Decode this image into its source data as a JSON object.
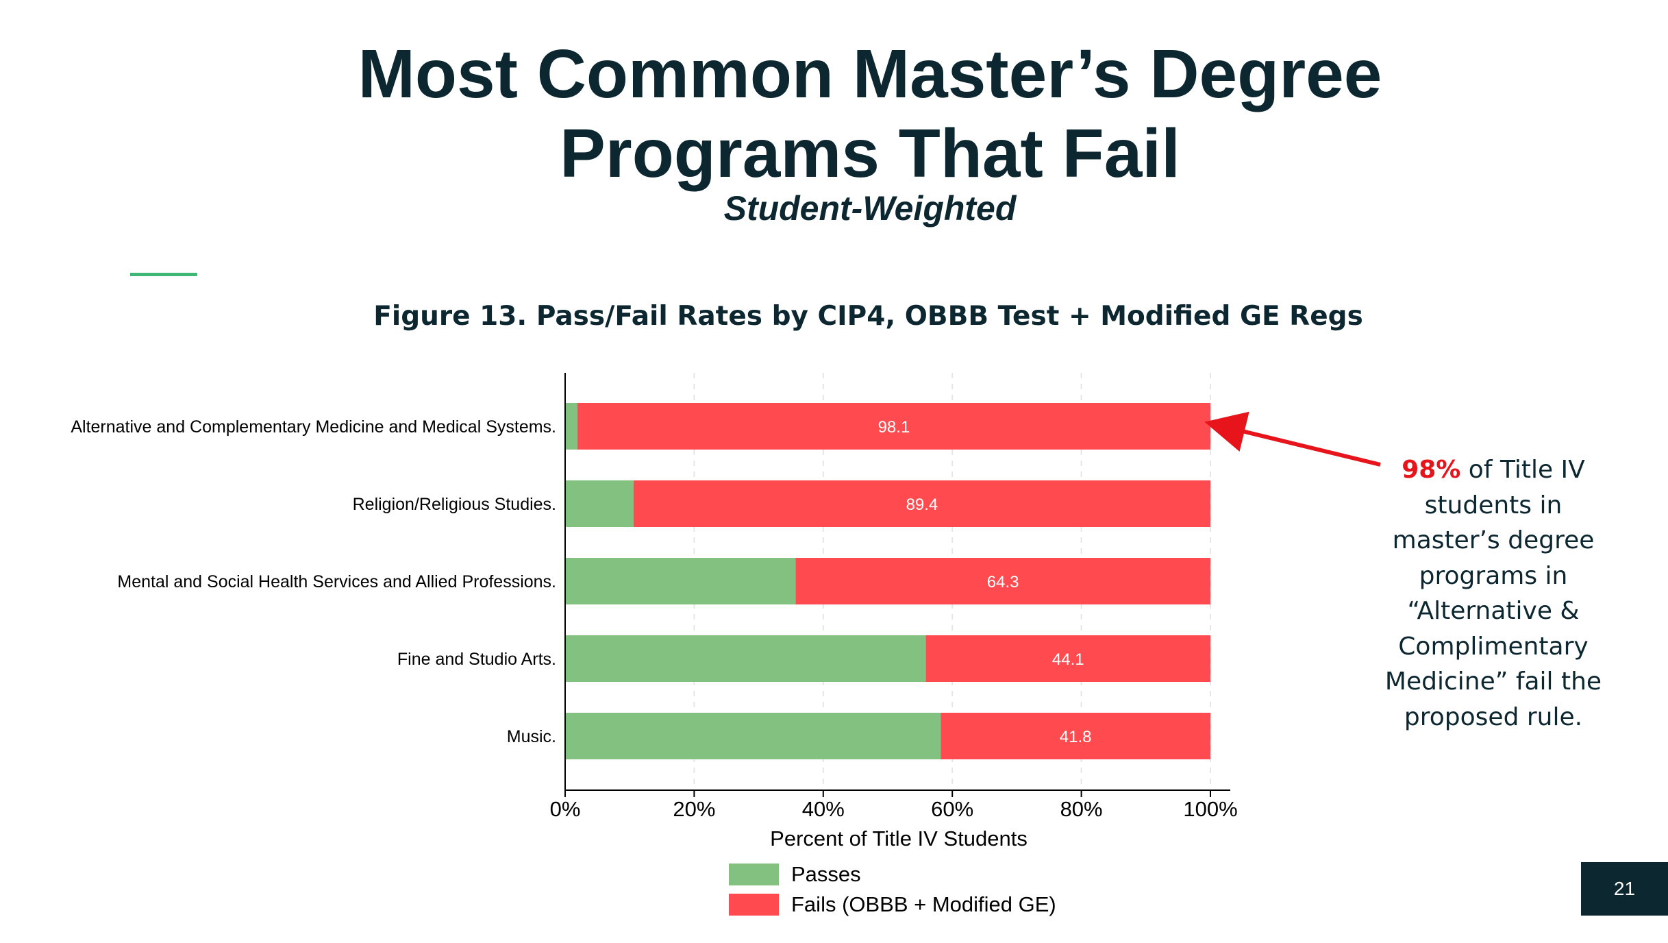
{
  "slide": {
    "title_line1": "Most Common Master’s Degree",
    "title_line2": "Programs That Fail",
    "subtitle": "Student-Weighted",
    "figure_caption": "Figure 13. Pass/Fail Rates by CIP4, OBBB Test + Modified GE Regs",
    "annotation": {
      "highlight": "98%",
      "text": " of Title IV students in master’s degree programs in “Alternative & Complimentary Medicine” fail the proposed rule."
    },
    "page_number": "21"
  },
  "colors": {
    "passes": "#82c17f",
    "fails": "#ff4b4f",
    "title": "#0d2731",
    "accent_rule": "#3fb777",
    "arrow": "#e8141c",
    "page_badge": "#0d2731"
  },
  "chart_data": {
    "type": "bar",
    "orientation": "horizontal",
    "stacked": true,
    "categories": [
      "Alternative and Complementary Medicine and Medical Systems.",
      "Religion/Religious Studies.",
      "Mental and Social Health Services and Allied Professions.",
      "Fine and Studio Arts.",
      "Music."
    ],
    "series": [
      {
        "name": "Passes",
        "values": [
          1.9,
          10.6,
          35.7,
          55.9,
          58.2
        ],
        "color": "#82c17f"
      },
      {
        "name": "Fails (OBBB + Modified GE)",
        "values": [
          98.1,
          89.4,
          64.3,
          44.1,
          41.8
        ],
        "color": "#ff4b4f"
      }
    ],
    "data_labels": [
      "98.1",
      "89.4",
      "64.3",
      "44.1",
      "41.8"
    ],
    "xlabel": "Percent of Title IV Students",
    "xlim": [
      0,
      100
    ],
    "xticks": [
      0,
      20,
      40,
      60,
      80,
      100
    ],
    "xtick_labels": [
      "0%",
      "20%",
      "40%",
      "60%",
      "80%",
      "100%"
    ],
    "grid": "vertical dashed",
    "legend": "bottom"
  }
}
